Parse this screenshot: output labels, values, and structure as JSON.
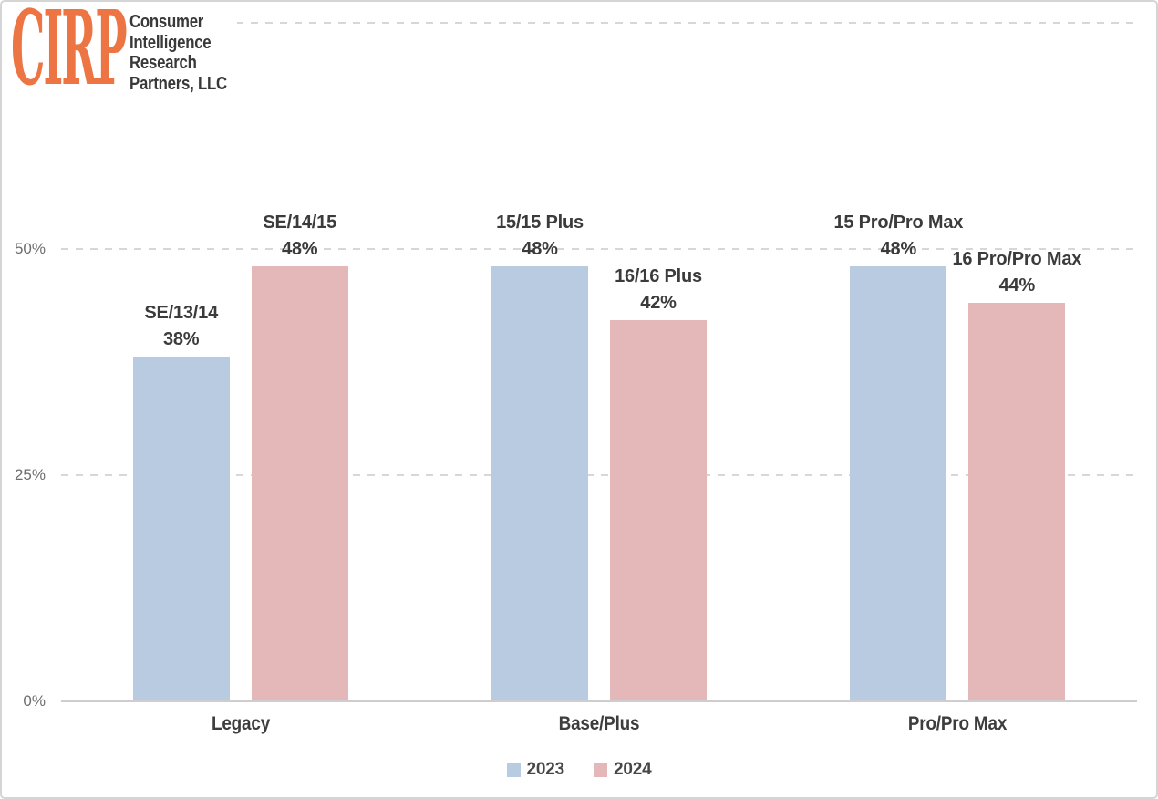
{
  "logo": {
    "acronym": "CIRP",
    "name_lines": [
      "Consumer",
      "Intelligence",
      "Research",
      "Partners, LLC"
    ],
    "accent_color": "#ED7443",
    "text_color": "#393939"
  },
  "chart_data": {
    "type": "bar",
    "categories": [
      "Legacy",
      "Base/Plus",
      "Pro/Pro Max"
    ],
    "series": [
      {
        "name": "2023",
        "color": "#B9CBE1",
        "values": [
          38,
          48,
          48
        ],
        "point_labels": [
          "SE/13/14",
          "15/15 Plus",
          "15 Pro/Pro Max"
        ]
      },
      {
        "name": "2024",
        "color": "#E4B8B8",
        "values": [
          48,
          42,
          44
        ],
        "point_labels": [
          "SE/14/15",
          "16/16 Plus",
          "16 Pro/Pro Max"
        ]
      }
    ],
    "value_suffix": "%",
    "ylim": [
      0,
      75
    ],
    "yticks": [
      {
        "value": 0,
        "label": "0%"
      },
      {
        "value": 25,
        "label": "25%"
      },
      {
        "value": 50,
        "label": "50%"
      },
      {
        "value": 75,
        "label": ""
      }
    ],
    "grid": "horizontal-dashed",
    "legend_position": "bottom",
    "colors": {
      "grid_line": "#D7D7D7",
      "axis_line": "#CFCDCD",
      "tick_text": "#6D6D6D",
      "label_text": "#3B3B3B",
      "category_text": "#3D3D3D",
      "legend_text": "#474747"
    }
  }
}
